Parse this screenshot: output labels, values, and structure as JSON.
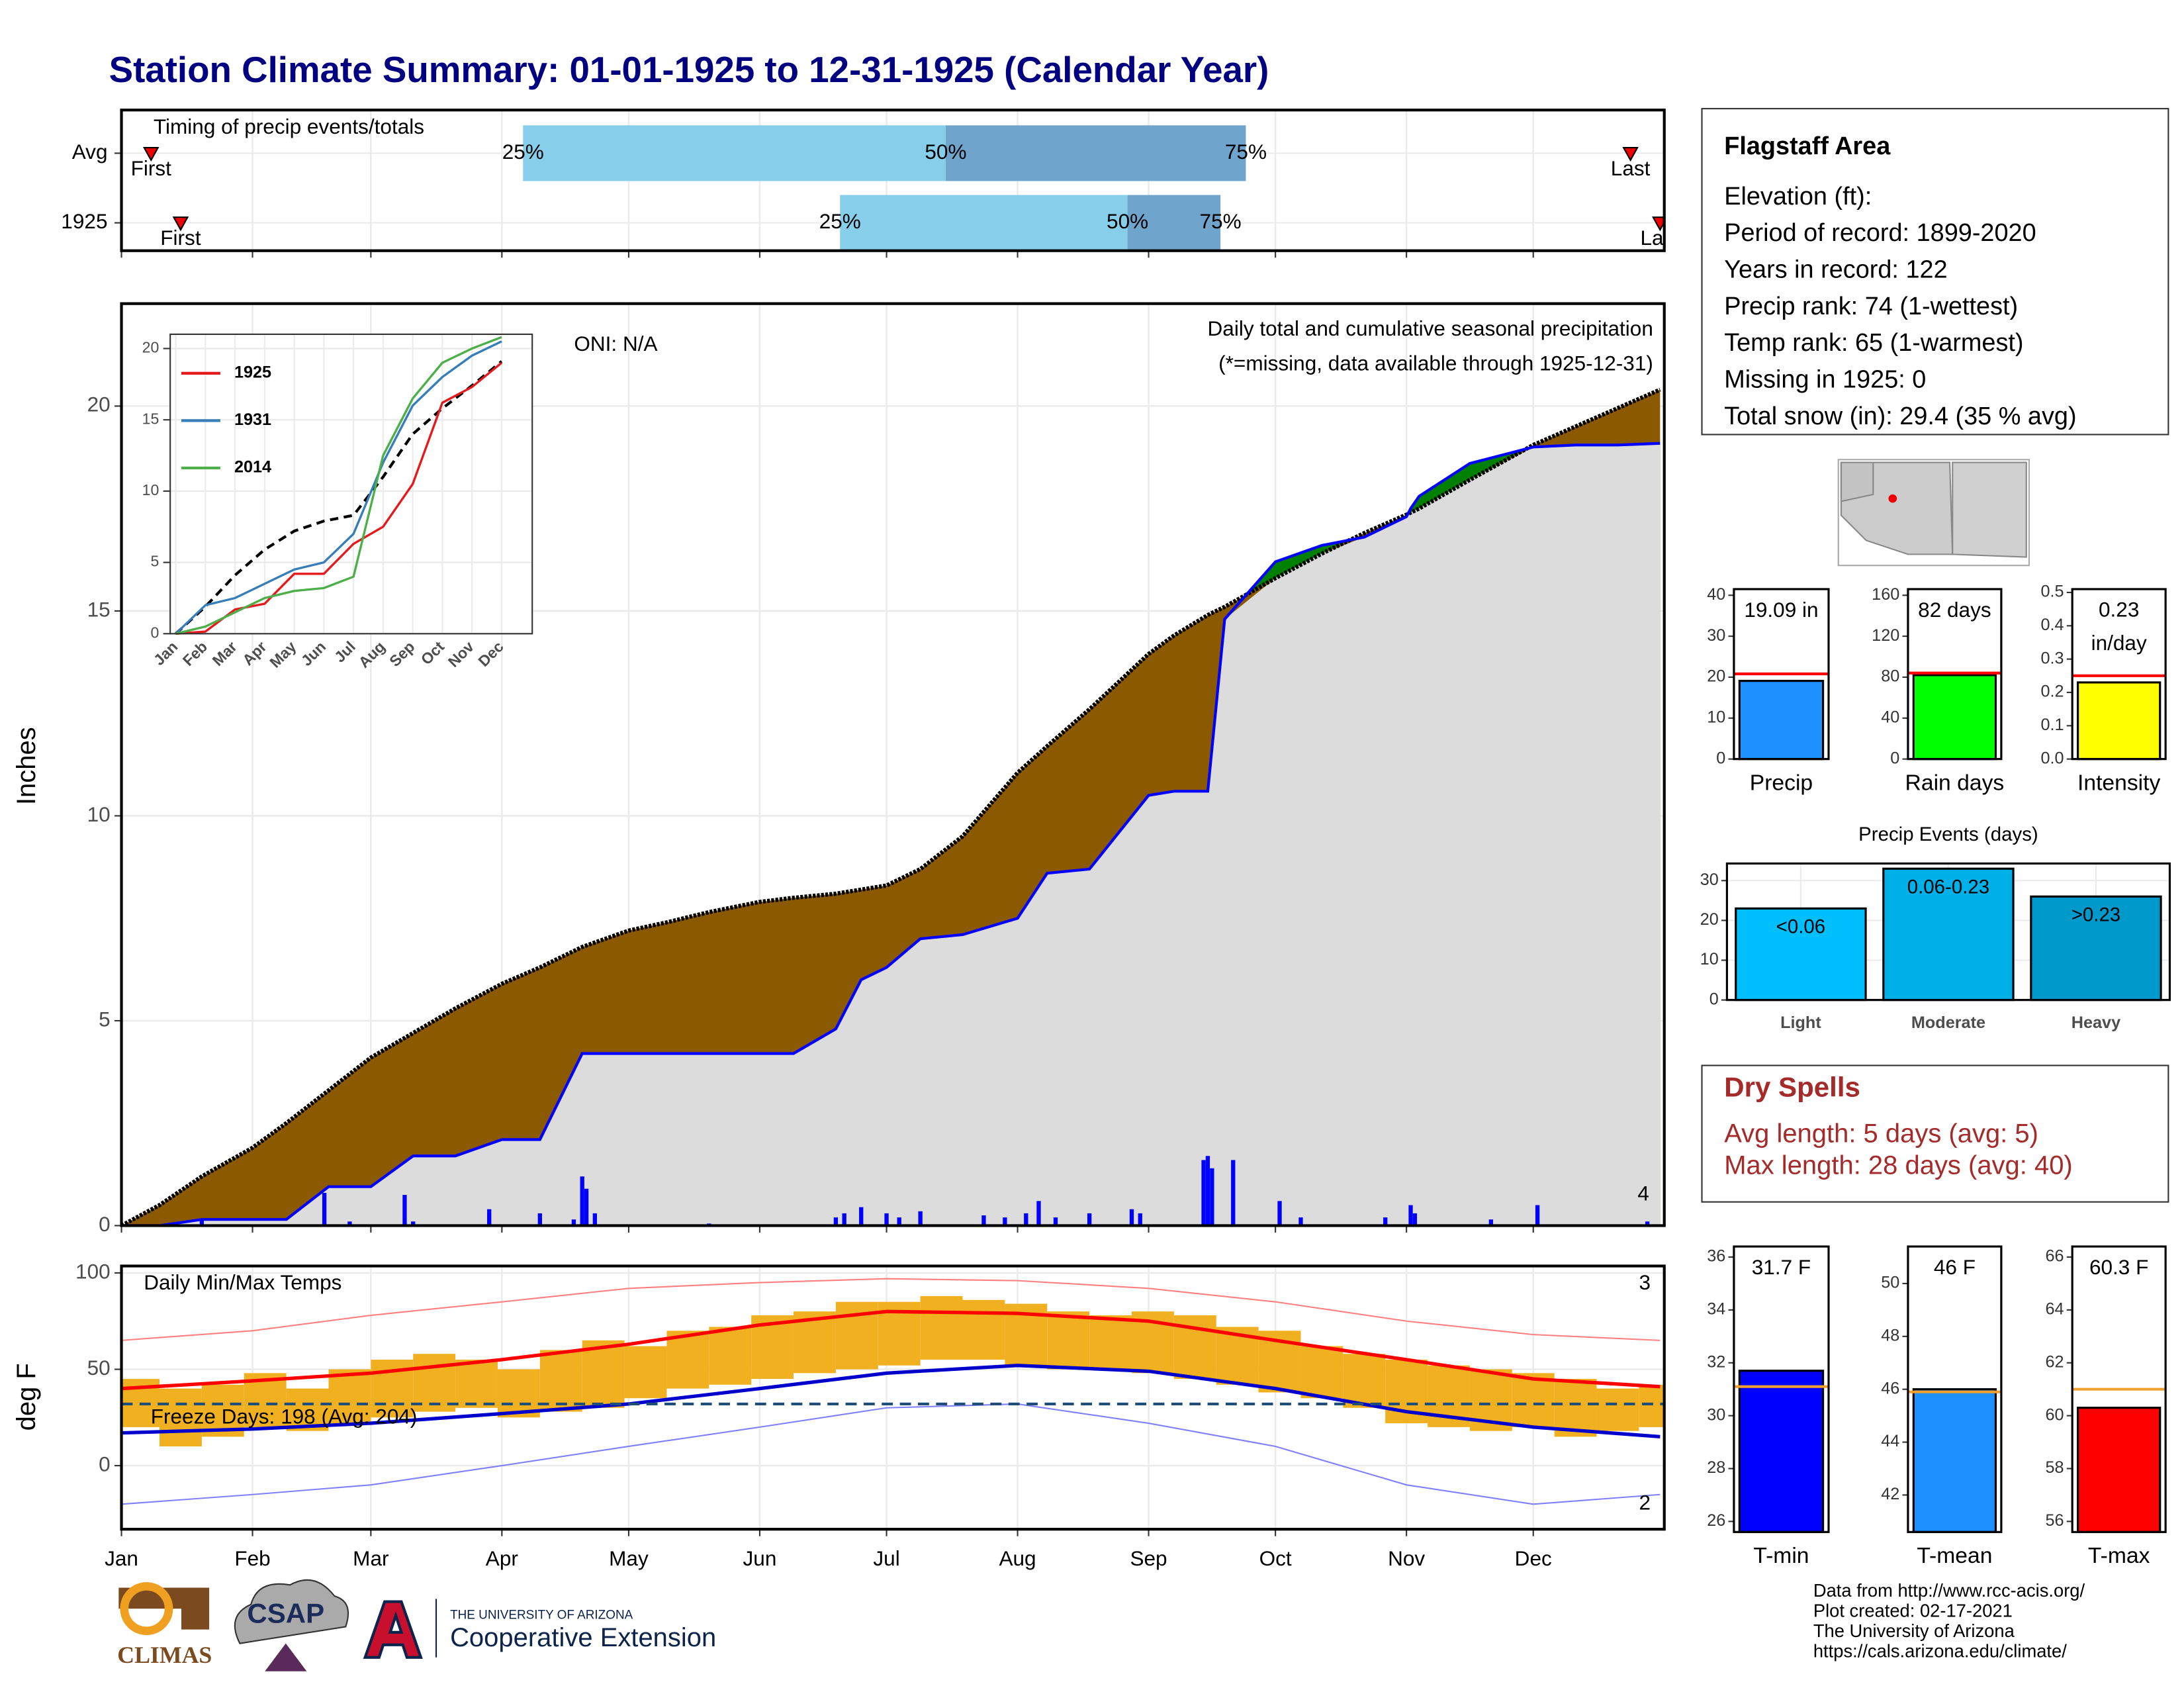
{
  "title": "Station Climate Summary: 01-01-1925 to 12-31-1925 (Calendar Year)",
  "info": {
    "title": "Flagstaff Area",
    "lines": [
      "Elevation (ft):",
      "Period of record: 1899-2020",
      "Years in record: 122",
      "Precip rank: 74 (1-wettest)",
      "Temp rank: 65 (1-warmest)",
      "Missing in 1925: 0",
      "Total snow (in): 29.4 (35 % avg)"
    ]
  },
  "dry_spells": {
    "title": "Dry Spells",
    "lines": [
      "Avg length: 5 days (avg: 5)",
      "Max length: 28 days (avg: 40)"
    ]
  },
  "logos": {
    "climas": "CLIMAS",
    "csap": "CSAP",
    "university": "THE UNIVERSITY OF ARIZONA",
    "extension": "Cooperative Extension"
  },
  "credits": [
    "Data from http://www.rcc-acis.org/",
    "Plot created: 02-17-2021",
    "The University of Arizona",
    "https://cals.arizona.edu/climate/"
  ],
  "chart_data": [
    {
      "type": "timeline",
      "title": "Timing of precip events/totals",
      "xlim": [
        1,
        366
      ],
      "xticks": [
        1,
        32,
        60,
        91,
        121,
        152,
        182,
        213,
        244,
        274,
        305,
        335
      ],
      "colors": [
        "#87ceeb",
        "#6fa4cc"
      ],
      "labels": {
        "first": "First",
        "last": "Last",
        "q25": "25%",
        "q50": "50%",
        "q75": "75%"
      },
      "rows": [
        {
          "name": "Avg",
          "first": 8,
          "q25": 96,
          "q50": 196,
          "q75": 267,
          "last": 358
        },
        {
          "name": "1925",
          "first": 15,
          "q25": 171,
          "q50": 239,
          "q75": 261,
          "last": 365
        }
      ]
    },
    {
      "type": "area",
      "title": "Daily total and cumulative seasonal precipitation",
      "note": "(*=missing, data available through 1925-12-31)",
      "oni": "ONI: N/A",
      "ylabel": "Inches",
      "record_count": 4,
      "xlim": [
        1,
        366
      ],
      "xticks": [
        1,
        32,
        60,
        91,
        121,
        152,
        182,
        213,
        244,
        274,
        305,
        335
      ],
      "ylim": [
        0,
        22.5
      ],
      "yticks": [
        0,
        5,
        10,
        15,
        20
      ],
      "x": [
        1,
        10,
        20,
        32,
        40,
        50,
        60,
        70,
        80,
        91,
        100,
        110,
        121,
        130,
        140,
        152,
        160,
        170,
        176,
        182,
        190,
        200,
        213,
        220,
        230,
        244,
        250,
        258,
        262,
        274,
        285,
        295,
        305,
        306,
        308,
        320,
        335,
        345,
        355,
        365
      ],
      "normal": {
        "color": "#000000",
        "fill": "#8b5a00",
        "values": [
          0,
          0.5,
          1.2,
          1.9,
          2.5,
          3.3,
          4.1,
          4.7,
          5.3,
          5.9,
          6.3,
          6.8,
          7.2,
          7.4,
          7.65,
          7.9,
          8.0,
          8.1,
          8.2,
          8.3,
          8.7,
          9.5,
          11.05,
          11.7,
          12.6,
          13.95,
          14.4,
          14.9,
          15.1,
          15.8,
          16.4,
          16.9,
          17.35,
          17.4,
          17.5,
          18.2,
          19.05,
          19.5,
          19.95,
          20.4
        ]
      },
      "actual": {
        "color": "#0000ff",
        "fill": "#008000",
        "values": [
          0,
          0,
          0.15,
          0.15,
          0.15,
          0.95,
          0.95,
          1.7,
          1.7,
          2.1,
          2.1,
          4.2,
          4.2,
          4.2,
          4.2,
          4.2,
          4.2,
          4.8,
          6.0,
          6.3,
          7.0,
          7.1,
          7.5,
          8.6,
          8.7,
          10.5,
          10.6,
          10.6,
          14.8,
          16.2,
          16.6,
          16.8,
          17.3,
          17.5,
          17.8,
          18.6,
          19.0,
          19.05,
          19.05,
          19.09
        ]
      },
      "base_color": "#dcdcdc",
      "daily": {
        "color": "#0000ff",
        "x": [
          20,
          49,
          55,
          68,
          70,
          88,
          100,
          108,
          110,
          111,
          113,
          140,
          170,
          172,
          176,
          182,
          185,
          190,
          205,
          210,
          215,
          218,
          222,
          230,
          240,
          242,
          257,
          258,
          259,
          264,
          275,
          280,
          300,
          306,
          307,
          325,
          336,
          362
        ],
        "values": [
          0.15,
          0.8,
          0.1,
          0.75,
          0.1,
          0.4,
          0.3,
          0.15,
          1.2,
          0.9,
          0.3,
          0.05,
          0.2,
          0.3,
          0.45,
          0.3,
          0.2,
          0.35,
          0.25,
          0.2,
          0.3,
          0.6,
          0.2,
          0.3,
          0.4,
          0.3,
          1.6,
          1.7,
          1.4,
          1.6,
          0.6,
          0.2,
          0.2,
          0.5,
          0.3,
          0.15,
          0.5,
          0.1
        ]
      }
    },
    {
      "type": "line",
      "categories": [
        "Jan",
        "Feb",
        "Mar",
        "Apr",
        "May",
        "Jun",
        "Jul",
        "Aug",
        "Sep",
        "Oct",
        "Nov",
        "Dec"
      ],
      "ylim": [
        0,
        21
      ],
      "yticks": [
        0,
        5,
        10,
        15,
        20
      ],
      "series": [
        {
          "color": "#000000",
          "dash": true,
          "values": [
            0,
            1.9,
            4.1,
            5.9,
            7.2,
            7.9,
            8.3,
            11.0,
            14.0,
            15.8,
            17.4,
            19.1
          ]
        },
        {
          "name": "1925",
          "color": "#e41a1c",
          "values": [
            0,
            0.15,
            1.7,
            2.1,
            4.2,
            4.2,
            6.3,
            7.5,
            10.5,
            16.2,
            17.3,
            19.0
          ]
        },
        {
          "name": "1931",
          "color": "#377eb8",
          "values": [
            0,
            2,
            2.5,
            3.5,
            4.5,
            5.0,
            7.0,
            12,
            16,
            18,
            19.5,
            20.5
          ]
        },
        {
          "name": "2014",
          "color": "#4daf4a",
          "values": [
            0,
            0.5,
            1.5,
            2.5,
            3.0,
            3.2,
            4.0,
            12.5,
            16.5,
            19,
            20,
            20.8
          ]
        }
      ]
    },
    {
      "type": "range",
      "title": "Daily Min/Max Temps",
      "ylabel": "deg F",
      "xlim": [
        1,
        366
      ],
      "xticks": [
        {
          "value": 1,
          "label": "Jan"
        },
        {
          "value": 32,
          "label": "Feb"
        },
        {
          "value": 60,
          "label": "Mar"
        },
        {
          "value": 91,
          "label": "Apr"
        },
        {
          "value": 121,
          "label": "May"
        },
        {
          "value": 152,
          "label": "Jun"
        },
        {
          "value": 182,
          "label": "Jul"
        },
        {
          "value": 213,
          "label": "Aug"
        },
        {
          "value": 244,
          "label": "Sep"
        },
        {
          "value": 274,
          "label": "Oct"
        },
        {
          "value": 305,
          "label": "Nov"
        },
        {
          "value": 335,
          "label": "Dec"
        }
      ],
      "ylim": [
        -33,
        103.6
      ],
      "yticks": [
        0,
        50,
        100
      ],
      "freeze_line": 32,
      "freeze_label": "Freeze Days: 198 (Avg: 204)",
      "record_highs": 3,
      "record_lows": 2,
      "x": [
        1,
        32,
        60,
        91,
        121,
        152,
        182,
        213,
        244,
        274,
        305,
        335,
        365
      ],
      "record_high": {
        "color": "#ff8080",
        "values": [
          65,
          70,
          78,
          85,
          92,
          95,
          97,
          96,
          92,
          85,
          75,
          68,
          65
        ]
      },
      "record_low": {
        "color": "#8080ff",
        "values": [
          -20,
          -15,
          -10,
          0,
          10,
          20,
          30,
          32,
          22,
          10,
          -10,
          -20,
          -15
        ]
      },
      "avg_high": {
        "color": "#ff0000",
        "values": [
          40,
          44,
          48,
          55,
          63,
          73,
          80,
          79,
          75,
          65,
          55,
          45,
          41
        ]
      },
      "avg_low": {
        "color": "#0000cd",
        "values": [
          17,
          19,
          22,
          27,
          32,
          40,
          48,
          52,
          49,
          40,
          28,
          20,
          15
        ]
      },
      "daily": {
        "color": "#f0b020",
        "x": [
          5,
          15,
          25,
          35,
          45,
          55,
          65,
          75,
          85,
          95,
          105,
          115,
          125,
          135,
          145,
          155,
          165,
          175,
          185,
          195,
          205,
          215,
          225,
          235,
          245,
          255,
          265,
          275,
          285,
          295,
          305,
          315,
          325,
          335,
          345,
          355,
          365
        ],
        "low": [
          20,
          10,
          15,
          20,
          18,
          22,
          25,
          28,
          30,
          25,
          28,
          30,
          35,
          40,
          42,
          45,
          48,
          50,
          52,
          55,
          55,
          52,
          50,
          50,
          48,
          45,
          42,
          38,
          35,
          30,
          22,
          20,
          18,
          20,
          15,
          18,
          20
        ],
        "high": [
          45,
          40,
          42,
          48,
          40,
          50,
          55,
          58,
          55,
          50,
          60,
          65,
          62,
          70,
          72,
          78,
          80,
          85,
          85,
          88,
          86,
          84,
          80,
          78,
          80,
          78,
          72,
          70,
          62,
          58,
          55,
          52,
          50,
          48,
          45,
          40,
          42
        ]
      }
    },
    {
      "type": "bar",
      "categories": [
        "Precip"
      ],
      "values": [
        19.09
      ],
      "value_labels": [
        "19.09 in"
      ],
      "color": "#1e90ff",
      "normal": 20.8,
      "normal_color": "#ff0000",
      "ylim": [
        0,
        41.5
      ],
      "yticks": [
        0,
        10,
        20,
        30,
        40
      ]
    },
    {
      "type": "bar",
      "categories": [
        "Rain days"
      ],
      "values": [
        82
      ],
      "value_labels": [
        "82 days"
      ],
      "color": "#00ff00",
      "normal": 84,
      "normal_color": "#ff0000",
      "ylim": [
        0,
        166
      ],
      "yticks": [
        0,
        40,
        80,
        120,
        160
      ]
    },
    {
      "type": "bar",
      "categories": [
        "Intensity"
      ],
      "values": [
        0.23
      ],
      "value_labels": [
        "0.23 in/day"
      ],
      "color": "#ffff00",
      "normal": 0.25,
      "normal_color": "#ff0000",
      "ylim": [
        0,
        0.51
      ],
      "yticks": [
        {
          "value": 0,
          "label": "0.0"
        },
        0.1,
        0.2,
        0.3,
        0.4,
        0.5
      ]
    },
    {
      "type": "bar",
      "title": "Precip Events (days)",
      "categories": [
        "Light",
        "Moderate",
        "Heavy"
      ],
      "values": [
        23,
        33,
        26
      ],
      "bin_labels": [
        "<0.06",
        "0.06-0.23",
        ">0.23"
      ],
      "colors": [
        "#00bfff",
        "#00b0e8",
        "#0099cc"
      ],
      "ylim": [
        0,
        34.3
      ],
      "yticks": [
        0,
        10,
        20,
        30
      ],
      "grid": true
    },
    {
      "type": "bar",
      "categories": [
        "T-min"
      ],
      "values": [
        31.7
      ],
      "value_labels": [
        "31.7 F"
      ],
      "color": "#0000ff",
      "normal": 31.1,
      "normal_color": "#f0a030",
      "ylim": [
        25.6,
        36.4
      ],
      "yticks": [
        26,
        28,
        30,
        32,
        34,
        36
      ]
    },
    {
      "type": "bar",
      "categories": [
        "T-mean"
      ],
      "values": [
        46
      ],
      "value_labels": [
        "46 F"
      ],
      "color": "#1e90ff",
      "normal": 45.9,
      "normal_color": "#f0a030",
      "ylim": [
        40.6,
        51.4
      ],
      "yticks": [
        42,
        44,
        46,
        48,
        50
      ]
    },
    {
      "type": "bar",
      "categories": [
        "T-max"
      ],
      "values": [
        60.3
      ],
      "value_labels": [
        "60.3 F"
      ],
      "color": "#ff0000",
      "normal": 61,
      "normal_color": "#f0a030",
      "ylim": [
        55.6,
        66.4
      ],
      "yticks": [
        56,
        58,
        60,
        62,
        64,
        66
      ]
    }
  ]
}
